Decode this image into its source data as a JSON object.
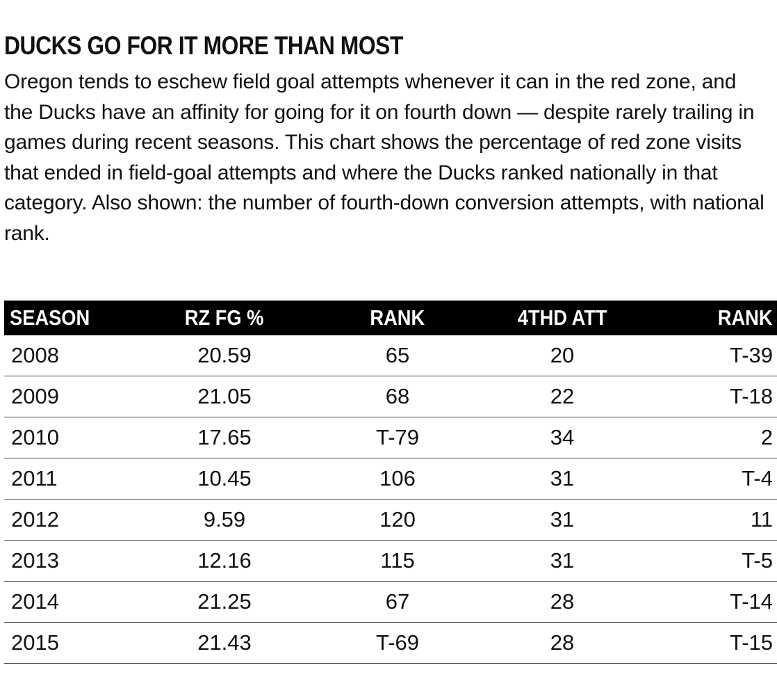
{
  "title": "DUCKS GO FOR IT MORE THAN MOST",
  "intro": "Oregon tends to eschew field goal attempts whenever it can in the red zone, and the Ducks have an affinity for going for it on fourth down — despite rarely trailing in games during recent seasons. This chart shows the percentage of red zone visits that ended in field-goal attempts and where the Ducks ranked nationally in that category. Also shown: the number of fourth-down conversion attempts, with national rank.",
  "chart_data": {
    "type": "table",
    "title": "DUCKS GO FOR IT MORE THAN MOST",
    "columns": [
      "SEASON",
      "RZ FG %",
      "RANK",
      "4THD ATT",
      "RANK"
    ],
    "rows": [
      [
        "2008",
        "20.59",
        "65",
        "20",
        "T-39"
      ],
      [
        "2009",
        "21.05",
        "68",
        "22",
        "T-18"
      ],
      [
        "2010",
        "17.65",
        "T-79",
        "34",
        "2"
      ],
      [
        "2011",
        "10.45",
        "106",
        "31",
        "T-4"
      ],
      [
        "2012",
        "9.59",
        "120",
        "31",
        "11"
      ],
      [
        "2013",
        "12.16",
        "115",
        "31",
        "T-5"
      ],
      [
        "2014",
        "21.25",
        "67",
        "28",
        "T-14"
      ],
      [
        "2015",
        "21.43",
        "T-69",
        "28",
        "T-15"
      ]
    ]
  },
  "colors": {
    "header_background": "#000000",
    "header_text": "#ffffff",
    "text": "#111111",
    "row_rule": "#444444"
  }
}
